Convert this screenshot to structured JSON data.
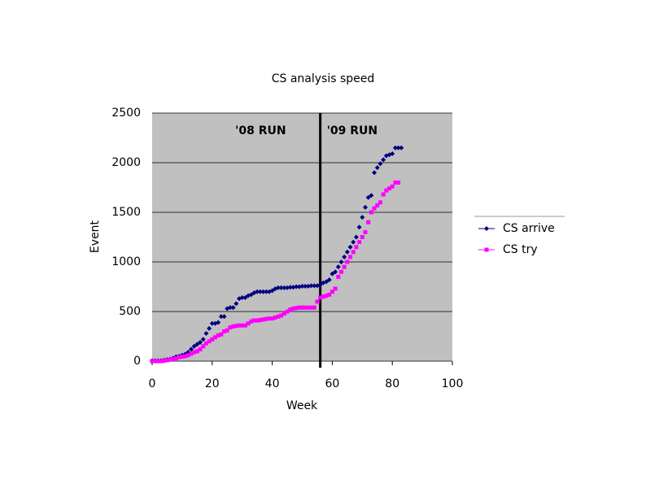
{
  "chart_data": {
    "type": "scatter",
    "title": "CS analysis speed",
    "x_label": "Week",
    "y_label": "Event",
    "xlim": [
      0,
      100
    ],
    "xticks": [
      0,
      20,
      40,
      60,
      80,
      100
    ],
    "ylim": [
      0,
      2500
    ],
    "yticks": [
      0,
      500,
      1000,
      1500,
      2000,
      2500
    ],
    "grid": true,
    "legend": "right",
    "annotations": [
      "'08 RUN",
      "'09 RUN"
    ],
    "divider_x": 56,
    "x": [
      0,
      1,
      2,
      3,
      4,
      5,
      6,
      7,
      8,
      9,
      10,
      11,
      12,
      13,
      14,
      15,
      16,
      17,
      18,
      19,
      20,
      21,
      22,
      23,
      24,
      25,
      26,
      27,
      28,
      29,
      30,
      31,
      32,
      33,
      34,
      35,
      36,
      37,
      38,
      39,
      40,
      41,
      42,
      43,
      44,
      45,
      46,
      47,
      48,
      49,
      50,
      51,
      52,
      53,
      54,
      55,
      56,
      57,
      58,
      59,
      60,
      61,
      62,
      63,
      64,
      65,
      66,
      67,
      68,
      69,
      70,
      71,
      72,
      73,
      74,
      75,
      76,
      77,
      78,
      79,
      80,
      81,
      82,
      83
    ],
    "series": [
      {
        "name": "CS arrive",
        "color": "#000080",
        "marker": "diamond",
        "values": [
          5,
          5,
          5,
          5,
          10,
          15,
          20,
          30,
          45,
          50,
          60,
          70,
          90,
          120,
          150,
          170,
          190,
          220,
          280,
          330,
          380,
          380,
          390,
          450,
          450,
          530,
          540,
          540,
          580,
          630,
          640,
          640,
          660,
          670,
          690,
          700,
          700,
          700,
          700,
          700,
          710,
          730,
          740,
          740,
          740,
          740,
          745,
          745,
          750,
          750,
          755,
          755,
          755,
          760,
          760,
          760,
          770,
          790,
          800,
          820,
          880,
          900,
          950,
          1000,
          1050,
          1100,
          1150,
          1200,
          1250,
          1350,
          1450,
          1550,
          1650,
          1670,
          1900,
          1950,
          1990,
          2030,
          2070,
          2080,
          2090,
          2150,
          2150,
          2150
        ]
      },
      {
        "name": "CS try",
        "color": "#ff00ff",
        "marker": "square",
        "values": [
          0,
          0,
          0,
          0,
          5,
          10,
          15,
          20,
          30,
          40,
          45,
          50,
          60,
          75,
          90,
          100,
          120,
          150,
          180,
          200,
          220,
          240,
          260,
          270,
          300,
          310,
          340,
          350,
          355,
          360,
          360,
          360,
          380,
          400,
          410,
          410,
          415,
          420,
          425,
          430,
          430,
          440,
          450,
          460,
          480,
          500,
          520,
          530,
          535,
          540,
          540,
          540,
          540,
          540,
          540,
          600,
          640,
          650,
          660,
          670,
          700,
          730,
          850,
          900,
          950,
          1000,
          1050,
          1100,
          1150,
          1200,
          1250,
          1300,
          1400,
          1500,
          1540,
          1570,
          1600,
          1680,
          1720,
          1740,
          1760,
          1800,
          1800,
          null
        ]
      }
    ]
  }
}
